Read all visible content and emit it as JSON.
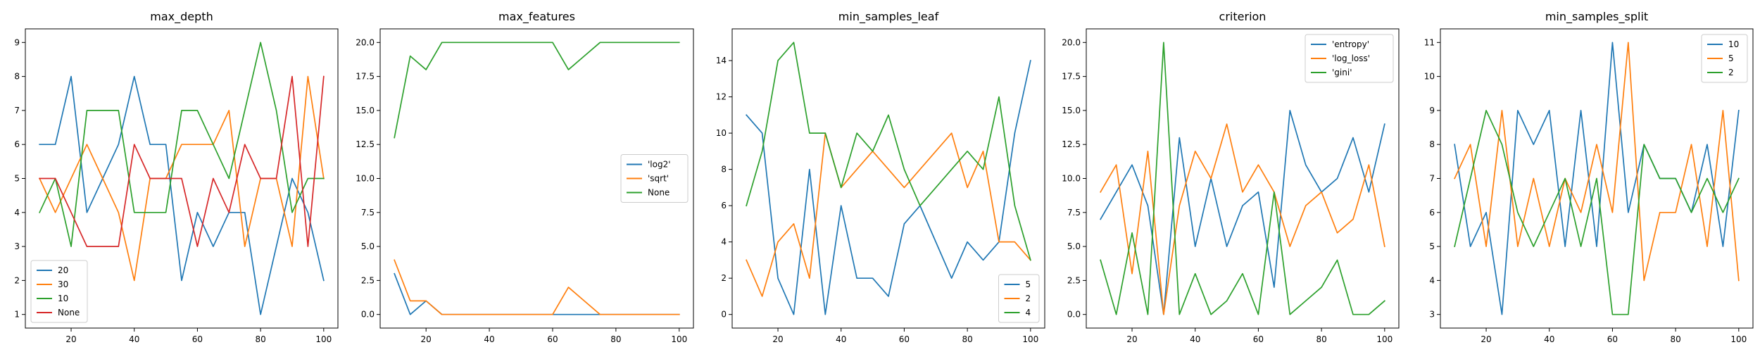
{
  "chart_data": [
    {
      "type": "line",
      "title": "max_depth",
      "xlabel": "",
      "ylabel": "",
      "x": [
        10,
        15,
        20,
        25,
        30,
        35,
        40,
        45,
        50,
        55,
        60,
        65,
        70,
        75,
        80,
        85,
        90,
        95,
        100
      ],
      "xlim": [
        5.5,
        104.5
      ],
      "ylim": [
        0.6,
        9.4
      ],
      "xticks": [
        20,
        40,
        60,
        80,
        100
      ],
      "yticks": [
        1,
        2,
        3,
        4,
        5,
        6,
        7,
        8,
        9
      ],
      "grid": false,
      "legend": "lower-left",
      "series": [
        {
          "name": "20",
          "color": "#1f77b4",
          "values": [
            6,
            6,
            8,
            4,
            5,
            6,
            8,
            6,
            6,
            2,
            4,
            3,
            4,
            4,
            1,
            3,
            5,
            4,
            2
          ]
        },
        {
          "name": "30",
          "color": "#ff7f0e",
          "values": [
            5,
            4,
            5,
            6,
            5,
            4,
            2,
            5,
            5,
            6,
            6,
            6,
            7,
            3,
            5,
            5,
            3,
            8,
            5
          ]
        },
        {
          "name": "10",
          "color": "#2ca02c",
          "values": [
            4,
            5,
            3,
            7,
            7,
            7,
            4,
            4,
            4,
            7,
            7,
            6,
            5,
            7,
            9,
            7,
            4,
            5,
            5
          ]
        },
        {
          "name": "None",
          "color": "#d62728",
          "values": [
            5,
            5,
            4,
            3,
            3,
            3,
            6,
            5,
            5,
            5,
            3,
            5,
            4,
            6,
            5,
            5,
            8,
            3,
            8
          ]
        }
      ]
    },
    {
      "type": "line",
      "title": "max_features",
      "xlabel": "",
      "ylabel": "",
      "x": [
        10,
        15,
        20,
        25,
        30,
        35,
        40,
        45,
        50,
        55,
        60,
        65,
        70,
        75,
        80,
        85,
        90,
        95,
        100
      ],
      "xlim": [
        5.5,
        104.5
      ],
      "ylim": [
        -1,
        21
      ],
      "xticks": [
        20,
        40,
        60,
        80,
        100
      ],
      "yticks": [
        0.0,
        2.5,
        5.0,
        7.5,
        10.0,
        12.5,
        15.0,
        17.5,
        20.0
      ],
      "ytick_labels": [
        "0.0",
        "2.5",
        "5.0",
        "7.5",
        "10.0",
        "12.5",
        "15.0",
        "17.5",
        "20.0"
      ],
      "grid": false,
      "legend": "center-right",
      "series": [
        {
          "name": "'log2'",
          "color": "#1f77b4",
          "values": [
            3,
            0,
            1,
            0,
            0,
            0,
            0,
            0,
            0,
            0,
            0,
            0,
            0,
            0,
            0,
            0,
            0,
            0,
            0
          ]
        },
        {
          "name": "'sqrt'",
          "color": "#ff7f0e",
          "values": [
            4,
            1,
            1,
            0,
            0,
            0,
            0,
            0,
            0,
            0,
            0,
            2,
            1,
            0,
            0,
            0,
            0,
            0,
            0
          ]
        },
        {
          "name": "None",
          "color": "#2ca02c",
          "values": [
            13,
            19,
            18,
            20,
            20,
            20,
            20,
            20,
            20,
            20,
            20,
            18,
            19,
            20,
            20,
            20,
            20,
            20,
            20
          ]
        }
      ]
    },
    {
      "type": "line",
      "title": "min_samples_leaf",
      "xlabel": "",
      "ylabel": "",
      "x": [
        10,
        15,
        20,
        25,
        30,
        35,
        40,
        45,
        50,
        55,
        60,
        65,
        70,
        75,
        80,
        85,
        90,
        95,
        100
      ],
      "xlim": [
        5.5,
        104.5
      ],
      "ylim": [
        -0.75,
        15.75
      ],
      "xticks": [
        20,
        40,
        60,
        80,
        100
      ],
      "yticks": [
        0,
        2,
        4,
        6,
        8,
        10,
        12,
        14
      ],
      "grid": false,
      "legend": "lower-right",
      "series": [
        {
          "name": "5",
          "color": "#1f77b4",
          "values": [
            11,
            10,
            2,
            0,
            8,
            0,
            6,
            2,
            2,
            1,
            5,
            6,
            4,
            2,
            4,
            3,
            4,
            10,
            14
          ]
        },
        {
          "name": "2",
          "color": "#ff7f0e",
          "values": [
            3,
            1,
            4,
            5,
            2,
            10,
            7,
            8,
            9,
            8,
            7,
            8,
            9,
            10,
            7,
            9,
            4,
            4,
            3
          ]
        },
        {
          "name": "4",
          "color": "#2ca02c",
          "values": [
            6,
            9,
            14,
            15,
            10,
            10,
            7,
            10,
            9,
            11,
            8,
            6,
            7,
            8,
            9,
            8,
            12,
            6,
            3
          ]
        }
      ]
    },
    {
      "type": "line",
      "title": "criterion",
      "xlabel": "",
      "ylabel": "",
      "x": [
        10,
        15,
        20,
        25,
        30,
        35,
        40,
        45,
        50,
        55,
        60,
        65,
        70,
        75,
        80,
        85,
        90,
        95,
        100
      ],
      "xlim": [
        5.5,
        104.5
      ],
      "ylim": [
        -1,
        21
      ],
      "xticks": [
        20,
        40,
        60,
        80,
        100
      ],
      "yticks": [
        0.0,
        2.5,
        5.0,
        7.5,
        10.0,
        12.5,
        15.0,
        17.5,
        20.0
      ],
      "ytick_labels": [
        "0.0",
        "2.5",
        "5.0",
        "7.5",
        "10.0",
        "12.5",
        "15.0",
        "17.5",
        "20.0"
      ],
      "grid": false,
      "legend": "upper-right",
      "series": [
        {
          "name": "'entropy'",
          "color": "#1f77b4",
          "values": [
            7,
            9,
            11,
            8,
            0,
            13,
            5,
            10,
            5,
            8,
            9,
            2,
            15,
            11,
            9,
            10,
            13,
            9,
            14
          ]
        },
        {
          "name": "'log_loss'",
          "color": "#ff7f0e",
          "values": [
            9,
            11,
            3,
            12,
            0,
            8,
            12,
            10,
            14,
            9,
            11,
            9,
            5,
            8,
            9,
            6,
            7,
            11,
            5
          ]
        },
        {
          "name": "'gini'",
          "color": "#2ca02c",
          "values": [
            4,
            0,
            6,
            0,
            20,
            0,
            3,
            0,
            1,
            3,
            0,
            9,
            0,
            1,
            2,
            4,
            0,
            0,
            1
          ]
        }
      ]
    },
    {
      "type": "line",
      "title": "min_samples_split",
      "xlabel": "",
      "ylabel": "",
      "x": [
        10,
        15,
        20,
        25,
        30,
        35,
        40,
        45,
        50,
        55,
        60,
        65,
        70,
        75,
        80,
        85,
        90,
        95,
        100
      ],
      "xlim": [
        5.5,
        104.5
      ],
      "ylim": [
        2.6,
        11.4
      ],
      "xticks": [
        20,
        40,
        60,
        80,
        100
      ],
      "yticks": [
        3,
        4,
        5,
        6,
        7,
        8,
        9,
        10,
        11
      ],
      "grid": false,
      "legend": "upper-right",
      "series": [
        {
          "name": "10",
          "color": "#1f77b4",
          "values": [
            8,
            5,
            6,
            3,
            9,
            8,
            9,
            5,
            9,
            5,
            11,
            6,
            8,
            7,
            7,
            6,
            8,
            5,
            9
          ]
        },
        {
          "name": "5",
          "color": "#ff7f0e",
          "values": [
            7,
            8,
            5,
            9,
            5,
            7,
            5,
            7,
            6,
            8,
            6,
            11,
            4,
            6,
            6,
            8,
            5,
            9,
            4
          ]
        },
        {
          "name": "2",
          "color": "#2ca02c",
          "values": [
            5,
            7,
            9,
            8,
            6,
            5,
            6,
            7,
            5,
            7,
            3,
            3,
            8,
            7,
            7,
            6,
            7,
            6,
            7
          ]
        }
      ]
    }
  ]
}
